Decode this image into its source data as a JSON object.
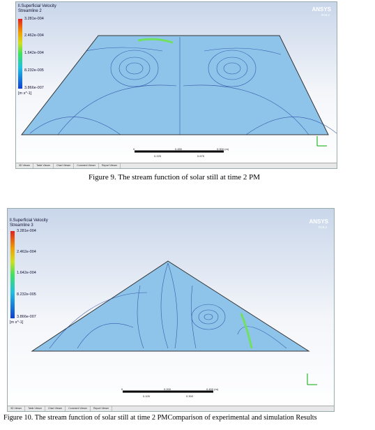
{
  "figures": [
    {
      "legend": {
        "title": "ll.Superficial Velocity",
        "subtitle": "Streamline 2",
        "ticks": [
          "3.281e-004",
          "2.462e-004",
          "1.642e-004",
          "8.232e-005",
          "3.866e-007"
        ],
        "unit": "[m s^-1]"
      },
      "brand": "ANSYS",
      "version": "R18.2",
      "scale": {
        "top": [
          "0",
          "0.450",
          "0.900 (m)"
        ],
        "bottom": [
          "0.225",
          "0.675"
        ]
      },
      "tabs": [
        "3D Viewer",
        "Table Viewer",
        "Chart Viewer",
        "Comment Viewer",
        "Report Viewer"
      ],
      "caption": "Figure 9. The stream function of solar still at time 2 PM"
    },
    {
      "legend": {
        "title": "ll.Superficial Velocity",
        "subtitle": "Streamline 3",
        "ticks": [
          "3.281e-004",
          "2.462e-004",
          "1.642e-004",
          "8.232e-005",
          "3.866e-007"
        ],
        "unit": "[m s^-1]"
      },
      "brand": "ANSYS",
      "version": "R18.2",
      "scale": {
        "top": [
          "0",
          "0.200",
          "0.400 (m)"
        ],
        "bottom": [
          "0.100",
          "0.300"
        ]
      },
      "tabs": [
        "3D Viewer",
        "Table Viewer",
        "Chart Viewer",
        "Comment Viewer",
        "Report Viewer"
      ],
      "caption": "Figure 10. The stream function of solar still at time 2 PMComparison of experimental and simulation Results"
    }
  ]
}
